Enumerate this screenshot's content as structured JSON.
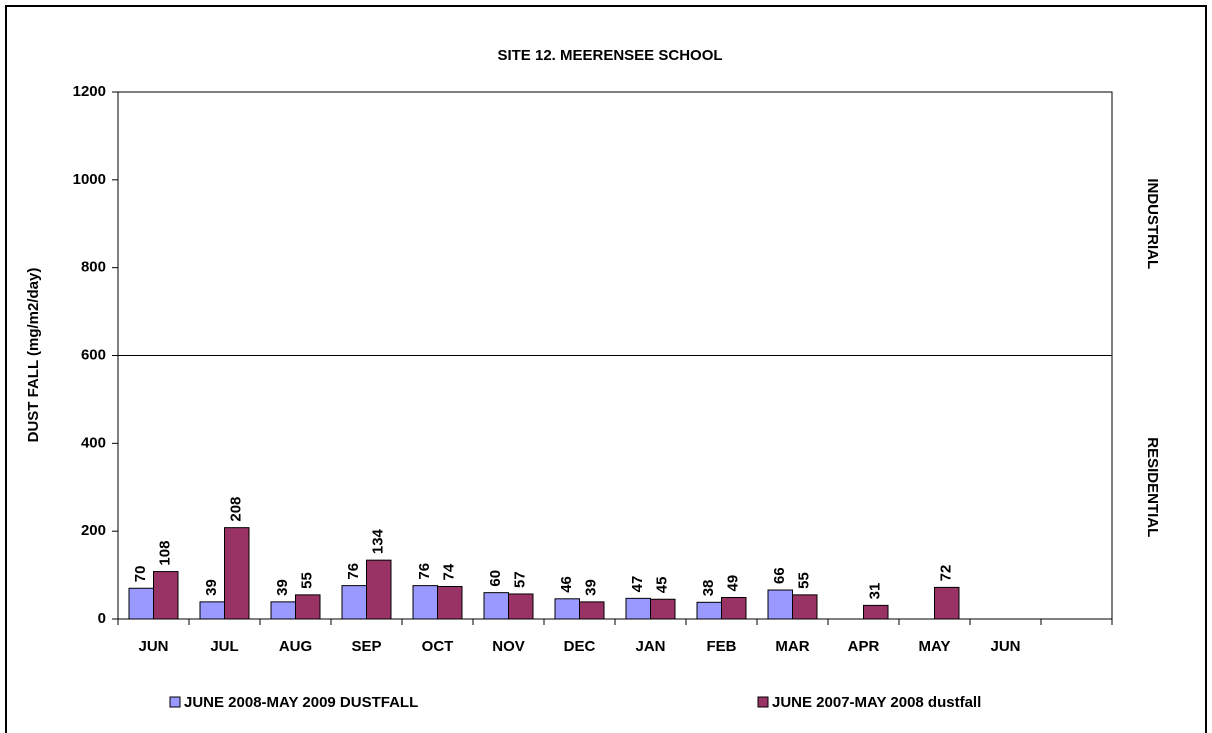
{
  "chart_data": {
    "type": "bar",
    "title": "SITE 12.  MEERENSEE SCHOOL",
    "y_label": "DUST FALL  (mg/m2/day)",
    "categories": [
      "JUN",
      "JUL",
      "AUG",
      "SEP",
      "OCT",
      "NOV",
      "DEC",
      "JAN",
      "FEB",
      "MAR",
      "APR",
      "MAY",
      "JUN",
      null
    ],
    "series": [
      {
        "name": "JUNE 2008-MAY 2009 DUSTFALL",
        "color": "#9999ff",
        "values": [
          70,
          39,
          39,
          76,
          76,
          60,
          46,
          47,
          38,
          66,
          null,
          null,
          null,
          null
        ]
      },
      {
        "name": "JUNE 2007-MAY 2008 dustfall",
        "color": "#993366",
        "values": [
          108,
          208,
          55,
          134,
          74,
          57,
          39,
          45,
          49,
          55,
          31,
          72,
          null,
          null
        ]
      }
    ],
    "ylim": [
      0,
      1200
    ],
    "yticks": [
      0,
      200,
      400,
      600,
      800,
      1000,
      1200
    ],
    "reference_line": 600,
    "zones": [
      "INDUSTRIAL",
      "RESIDENTIAL"
    ],
    "grid": false,
    "legend": "bottom"
  }
}
